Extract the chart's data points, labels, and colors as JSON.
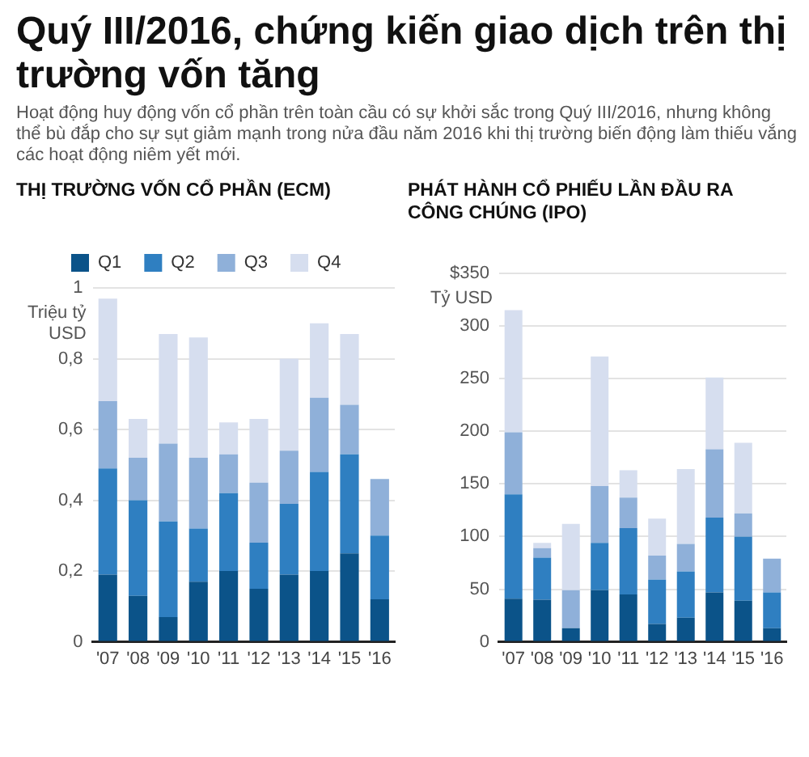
{
  "chart_data": [
    {
      "type": "other",
      "title": "Quý III/2016, chứng kiến giao dịch trên thị trường vốn tăng",
      "subtitle": "Hoạt động huy động vốn cổ phần trên toàn cầu có sự khởi sắc trong Quý III/2016, nhưng không thể bù đắp cho sự sụt giảm mạnh trong nửa đầu năm 2016 khi thị trường biến động làm thiếu vắng các hoạt động niêm yết mới."
    },
    {
      "type": "bar",
      "title": "THỊ TRƯỜNG VỐN CỔ PHẦN (ECM)",
      "ylabel": "Triệu tỷ USD",
      "stacked": true,
      "grid": "y",
      "legend": "top",
      "categories": [
        "'07",
        "'08",
        "'09",
        "'10",
        "'11",
        "'12",
        "'13",
        "'14",
        "'15",
        "'16"
      ],
      "ylim": [
        0,
        1
      ],
      "yticks": [
        0,
        {
          "value": 0.2,
          "label": "0,2"
        },
        {
          "value": 0.4,
          "label": "0,4"
        },
        {
          "value": 0.6,
          "label": "0,6"
        },
        {
          "value": 0.8,
          "label": "0,8"
        },
        1
      ],
      "series": [
        {
          "name": "Q1",
          "color": "#0b5389",
          "values": [
            0.19,
            0.13,
            0.07,
            0.17,
            0.2,
            0.15,
            0.19,
            0.2,
            0.25,
            0.12
          ]
        },
        {
          "name": "Q2",
          "color": "#2f7fc1",
          "values": [
            0.3,
            0.27,
            0.27,
            0.15,
            0.22,
            0.13,
            0.2,
            0.28,
            0.28,
            0.18
          ]
        },
        {
          "name": "Q3",
          "color": "#8fb0d9",
          "values": [
            0.19,
            0.12,
            0.22,
            0.2,
            0.11,
            0.17,
            0.15,
            0.21,
            0.14,
            0.16
          ]
        },
        {
          "name": "Q4",
          "color": "#d6deef",
          "values": [
            0.29,
            0.11,
            0.31,
            0.34,
            0.09,
            0.18,
            0.26,
            0.21,
            0.2,
            0
          ]
        }
      ]
    },
    {
      "type": "bar",
      "title": "PHÁT HÀNH CỔ PHIẾU LẦN ĐẦU RA CÔNG CHÚNG (IPO)",
      "ylabel": "Tỷ USD",
      "stacked": true,
      "grid": "y",
      "categories": [
        "'07",
        "'08",
        "'09",
        "'10",
        "'11",
        "'12",
        "'13",
        "'14",
        "'15",
        "'16"
      ],
      "ylim": [
        0,
        350
      ],
      "yticks": [
        0,
        50,
        100,
        150,
        200,
        250,
        300,
        {
          "value": 350,
          "label": "$350"
        }
      ],
      "series": [
        {
          "color": "#0b5389",
          "values": [
            41,
            40,
            13,
            49,
            45,
            17,
            23,
            47,
            39,
            13
          ]
        },
        {
          "color": "#2f7fc1",
          "values": [
            99,
            40,
            0,
            45,
            63,
            42,
            44,
            71,
            61,
            34
          ]
        },
        {
          "color": "#8fb0d9",
          "values": [
            59,
            9,
            36,
            54,
            29,
            23,
            26,
            65,
            22,
            32
          ]
        },
        {
          "color": "#d6deef",
          "values": [
            116,
            5,
            63,
            123,
            26,
            35,
            71,
            68,
            67,
            0
          ]
        }
      ]
    }
  ]
}
